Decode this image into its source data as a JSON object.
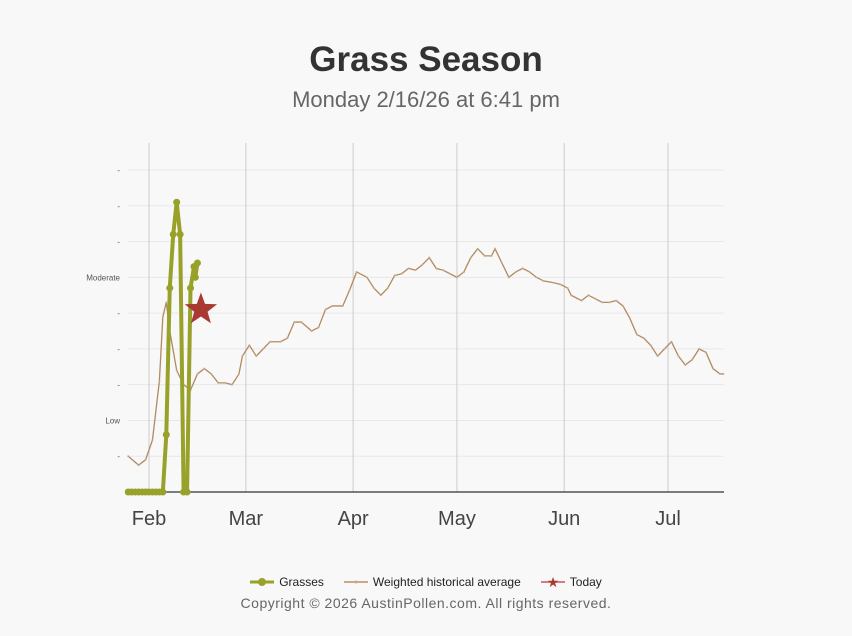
{
  "chart_data": {
    "type": "line",
    "title": "Grass Season",
    "subtitle": "Monday 2/16/26 at 6:41 pm",
    "xlabel": "",
    "ylabel": "",
    "x_unit": "days since Feb 1",
    "x_ticks": [
      {
        "label": "Feb",
        "day": 0
      },
      {
        "label": "Mar",
        "day": 28
      },
      {
        "label": "Apr",
        "day": 59
      },
      {
        "label": "May",
        "day": 89
      },
      {
        "label": "Jun",
        "day": 120
      },
      {
        "label": "Jul",
        "day": 150
      }
    ],
    "xlim": [
      -6,
      166
    ],
    "ylim": [
      0,
      9
    ],
    "y_ticks": [
      {
        "v": 1,
        "label": "-"
      },
      {
        "v": 2,
        "label": "Low"
      },
      {
        "v": 3,
        "label": "-"
      },
      {
        "v": 4,
        "label": "-"
      },
      {
        "v": 5,
        "label": "-"
      },
      {
        "v": 6,
        "label": "Moderate"
      },
      {
        "v": 7,
        "label": "-"
      },
      {
        "v": 8,
        "label": "-"
      },
      {
        "v": 9,
        "label": "-"
      }
    ],
    "grid": true,
    "series": [
      {
        "name": "Grasses",
        "color": "#98a12a",
        "points": [
          [
            -6,
            0
          ],
          [
            -5,
            0
          ],
          [
            -4,
            0
          ],
          [
            -3,
            0
          ],
          [
            -2,
            0
          ],
          [
            -1,
            0
          ],
          [
            0,
            0
          ],
          [
            1,
            0
          ],
          [
            2,
            0
          ],
          [
            3,
            0
          ],
          [
            4,
            0
          ],
          [
            5,
            1.6
          ],
          [
            6,
            5.7
          ],
          [
            7,
            7.2
          ],
          [
            8,
            8.1
          ],
          [
            9,
            7.2
          ],
          [
            10,
            0
          ],
          [
            11,
            0
          ],
          [
            12,
            5.7
          ],
          [
            13,
            6.3
          ],
          [
            13.4,
            6.0
          ],
          [
            14,
            6.4
          ]
        ]
      },
      {
        "name": "Weighted historical average",
        "color": "#b08a60",
        "points": [
          [
            -6,
            1.0
          ],
          [
            -3,
            0.75
          ],
          [
            -1,
            0.9
          ],
          [
            1,
            1.45
          ],
          [
            3,
            3.1
          ],
          [
            4,
            4.9
          ],
          [
            5,
            5.3
          ],
          [
            6,
            4.5
          ],
          [
            8,
            3.4
          ],
          [
            10,
            3.0
          ],
          [
            12,
            2.85
          ],
          [
            14,
            3.3
          ],
          [
            16,
            3.45
          ],
          [
            18,
            3.3
          ],
          [
            20,
            3.05
          ],
          [
            22,
            3.05
          ],
          [
            24,
            3.0
          ],
          [
            26,
            3.3
          ],
          [
            27,
            3.8
          ],
          [
            29,
            4.1
          ],
          [
            31,
            3.8
          ],
          [
            33,
            4.0
          ],
          [
            35,
            4.2
          ],
          [
            38,
            4.2
          ],
          [
            40,
            4.3
          ],
          [
            42,
            4.75
          ],
          [
            44,
            4.75
          ],
          [
            47,
            4.5
          ],
          [
            49,
            4.6
          ],
          [
            51,
            5.1
          ],
          [
            53,
            5.2
          ],
          [
            56,
            5.2
          ],
          [
            58,
            5.65
          ],
          [
            60,
            6.15
          ],
          [
            63,
            6.0
          ],
          [
            65,
            5.7
          ],
          [
            67,
            5.5
          ],
          [
            69,
            5.7
          ],
          [
            71,
            6.05
          ],
          [
            73,
            6.1
          ],
          [
            75,
            6.25
          ],
          [
            77,
            6.2
          ],
          [
            79,
            6.35
          ],
          [
            81,
            6.55
          ],
          [
            83,
            6.25
          ],
          [
            85,
            6.2
          ],
          [
            87,
            6.1
          ],
          [
            89,
            6.0
          ],
          [
            91,
            6.15
          ],
          [
            93,
            6.55
          ],
          [
            95,
            6.8
          ],
          [
            97,
            6.6
          ],
          [
            99,
            6.6
          ],
          [
            100,
            6.8
          ],
          [
            102,
            6.4
          ],
          [
            104,
            6.0
          ],
          [
            106,
            6.15
          ],
          [
            108,
            6.25
          ],
          [
            110,
            6.15
          ],
          [
            112,
            6.0
          ],
          [
            114,
            5.9
          ],
          [
            117,
            5.85
          ],
          [
            119,
            5.8
          ],
          [
            121,
            5.7
          ],
          [
            122,
            5.5
          ],
          [
            125,
            5.35
          ],
          [
            127,
            5.5
          ],
          [
            129,
            5.4
          ],
          [
            131,
            5.3
          ],
          [
            133,
            5.3
          ],
          [
            135,
            5.35
          ],
          [
            137,
            5.2
          ],
          [
            139,
            4.85
          ],
          [
            141,
            4.4
          ],
          [
            143,
            4.3
          ],
          [
            145,
            4.1
          ],
          [
            147,
            3.8
          ],
          [
            149,
            4.0
          ],
          [
            151,
            4.2
          ],
          [
            153,
            3.8
          ],
          [
            155,
            3.55
          ],
          [
            157,
            3.7
          ],
          [
            159,
            4.0
          ],
          [
            161,
            3.9
          ],
          [
            163,
            3.45
          ],
          [
            165,
            3.3
          ],
          [
            166,
            3.3
          ]
        ]
      },
      {
        "name": "Today",
        "color": "#a83a32",
        "points": [
          [
            15,
            5.1
          ]
        ]
      }
    ]
  },
  "legend": [
    "Grasses",
    "Weighted historical average",
    "Today"
  ],
  "copyright": "Copyright © 2026 AustinPollen.com.  All rights reserved."
}
